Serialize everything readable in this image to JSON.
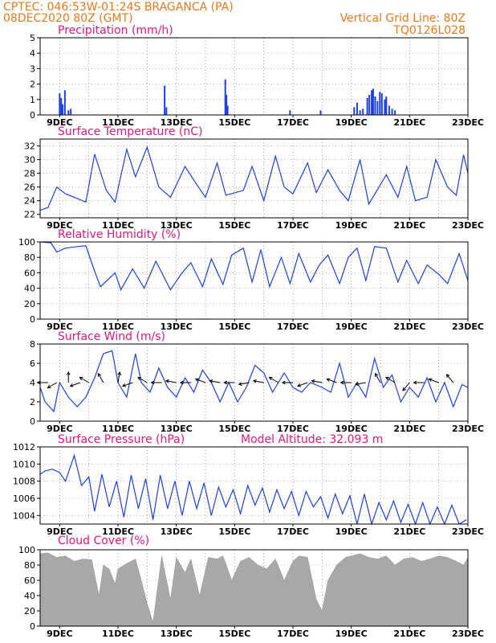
{
  "header": {
    "line1_left": "CPTEC:   046:53W-01:24S   BRAGANCA (PA)",
    "line2_left": "08DEC2020 80Z (GMT)",
    "line1_right": "Vertical Grid Line: 80Z",
    "line2_right": "TQ0126L028"
  },
  "colors": {
    "line": "#1f3fe6",
    "bar": "#1f3fe6",
    "cloud": "#a8a8a8",
    "header": "#e8791c",
    "title": "#e0187a"
  },
  "chart_data": [
    {
      "type": "bar",
      "title": "Precipitation (mm/h)",
      "x_ticks": [
        "9DEC",
        "11DEC",
        "13DEC",
        "15DEC",
        "17DEC",
        "19DEC",
        "21DEC",
        "23DEC"
      ],
      "x_range": [
        8.33,
        23
      ],
      "ylim": [
        0,
        5
      ],
      "y_ticks": [
        0,
        1,
        2,
        3,
        4,
        5
      ],
      "x": [
        9.0,
        9.05,
        9.1,
        9.18,
        9.3,
        9.38,
        12.6,
        12.66,
        14.68,
        14.72,
        14.76,
        16.9,
        17.95,
        19.1,
        19.2,
        19.3,
        19.4,
        19.55,
        19.62,
        19.7,
        19.75,
        19.82,
        19.9,
        19.98,
        20.05,
        20.15,
        20.2,
        20.3,
        20.4,
        20.5
      ],
      "values": [
        1.4,
        1.1,
        0.7,
        1.6,
        0.3,
        0.4,
        1.9,
        0.5,
        2.3,
        1.3,
        0.6,
        0.3,
        0.3,
        0.5,
        0.8,
        0.3,
        0.4,
        1.1,
        1.3,
        1.6,
        1.7,
        1.2,
        0.9,
        1.5,
        1.4,
        1.0,
        1.2,
        0.6,
        0.4,
        0.3
      ]
    },
    {
      "type": "line",
      "title": "Surface Temperature (nC)",
      "x_ticks": [
        "9DEC",
        "11DEC",
        "13DEC",
        "15DEC",
        "17DEC",
        "19DEC",
        "21DEC",
        "23DEC"
      ],
      "x_range": [
        8.33,
        23
      ],
      "ylim": [
        21.5,
        33
      ],
      "y_ticks": [
        22,
        24,
        26,
        28,
        30,
        32
      ],
      "x": [
        8.33,
        8.6,
        8.9,
        9.2,
        9.5,
        9.9,
        10.2,
        10.6,
        10.9,
        11.3,
        11.6,
        12.0,
        12.4,
        12.8,
        13.3,
        13.6,
        14.0,
        14.4,
        14.7,
        15.3,
        15.6,
        16.0,
        16.4,
        16.7,
        17.0,
        17.5,
        17.8,
        18.2,
        18.6,
        18.9,
        19.3,
        19.6,
        20.2,
        20.6,
        20.9,
        21.2,
        21.6,
        21.9,
        22.3,
        22.6,
        22.85,
        23.0
      ],
      "values": [
        22.6,
        23.0,
        26.0,
        25.0,
        24.5,
        23.8,
        30.8,
        25.5,
        23.8,
        31.5,
        27.5,
        31.8,
        26.0,
        24.5,
        29.0,
        27.0,
        24.5,
        29.5,
        24.8,
        25.5,
        29.0,
        24.0,
        30.5,
        26.0,
        25.0,
        29.5,
        25.2,
        28.5,
        25.5,
        24.0,
        30.0,
        23.5,
        27.8,
        24.5,
        29.0,
        24.0,
        24.5,
        30.0,
        26.0,
        24.8,
        30.7,
        28.0
      ]
    },
    {
      "type": "line",
      "title": "Relative Humidity (%)",
      "x_ticks": [
        "9DEC",
        "11DEC",
        "13DEC",
        "15DEC",
        "17DEC",
        "19DEC",
        "21DEC",
        "23DEC"
      ],
      "x_range": [
        8.33,
        23
      ],
      "ylim": [
        0,
        100
      ],
      "y_ticks": [
        0,
        20,
        40,
        60,
        80,
        100
      ],
      "x": [
        8.33,
        8.7,
        8.9,
        9.2,
        9.6,
        9.9,
        10.2,
        10.4,
        10.9,
        11.1,
        11.5,
        11.9,
        12.3,
        12.8,
        13.2,
        13.5,
        13.9,
        14.2,
        14.6,
        14.9,
        15.3,
        15.6,
        15.9,
        16.2,
        16.6,
        16.9,
        17.2,
        17.6,
        17.9,
        18.2,
        18.6,
        18.9,
        19.2,
        19.5,
        19.8,
        20.2,
        20.6,
        20.9,
        21.3,
        21.6,
        22.0,
        22.3,
        22.7,
        23.0
      ],
      "values": [
        100,
        99,
        87,
        92,
        94,
        95,
        62,
        42,
        60,
        38,
        65,
        40,
        75,
        38,
        60,
        73,
        42,
        78,
        45,
        83,
        92,
        48,
        90,
        42,
        80,
        46,
        85,
        48,
        70,
        83,
        46,
        80,
        92,
        50,
        94,
        92,
        48,
        76,
        46,
        70,
        58,
        46,
        85,
        50
      ]
    },
    {
      "type": "line",
      "title": "Surface Wind (m/s)",
      "x_ticks": [
        "9DEC",
        "11DEC",
        "13DEC",
        "15DEC",
        "17DEC",
        "19DEC",
        "21DEC",
        "23DEC"
      ],
      "x_range": [
        8.33,
        23
      ],
      "ylim": [
        0,
        8
      ],
      "y_ticks": [
        0,
        2,
        4,
        6,
        8
      ],
      "x": [
        8.33,
        8.5,
        8.8,
        9.0,
        9.3,
        9.6,
        9.9,
        10.2,
        10.5,
        10.8,
        11.0,
        11.3,
        11.6,
        11.8,
        12.1,
        12.4,
        12.7,
        13.0,
        13.3,
        13.6,
        13.9,
        14.2,
        14.5,
        14.8,
        15.1,
        15.4,
        15.7,
        16.0,
        16.3,
        16.7,
        17.0,
        17.3,
        17.6,
        18.0,
        18.3,
        18.6,
        18.9,
        19.2,
        19.5,
        19.8,
        20.1,
        20.4,
        20.7,
        21.0,
        21.3,
        21.6,
        21.9,
        22.2,
        22.5,
        22.8,
        23.0
      ],
      "values": [
        3.5,
        2.0,
        1.0,
        4.0,
        2.5,
        1.5,
        2.5,
        4.5,
        7.0,
        7.3,
        4.0,
        2.5,
        7.0,
        4.0,
        3.0,
        5.5,
        3.5,
        2.5,
        4.5,
        3.0,
        5.3,
        4.0,
        2.0,
        4.0,
        2.0,
        3.5,
        5.8,
        5.0,
        3.0,
        5.0,
        3.5,
        3.0,
        4.0,
        3.5,
        3.0,
        6.0,
        2.5,
        4.0,
        2.5,
        6.5,
        3.5,
        4.8,
        2.0,
        3.5,
        2.5,
        4.5,
        2.0,
        4.0,
        1.5,
        3.8,
        3.5
      ],
      "arrows_x": [
        8.6,
        8.9,
        9.3,
        9.7,
        10.0,
        10.5,
        11.0,
        11.5,
        12.0,
        12.5,
        13.0,
        13.5,
        14.0,
        14.5,
        15.0,
        15.5,
        16.0,
        16.5,
        17.0,
        17.5,
        18.0,
        18.5,
        19.0,
        19.5,
        20.0,
        20.5,
        21.0,
        21.5,
        22.0,
        22.5
      ],
      "arrows_dir": [
        180,
        210,
        90,
        200,
        150,
        120,
        80,
        200,
        150,
        180,
        170,
        180,
        160,
        170,
        180,
        190,
        170,
        150,
        180,
        200,
        170,
        160,
        180,
        190,
        120,
        150,
        230,
        180,
        160,
        130
      ]
    },
    {
      "type": "line",
      "title": "Surface Pressure (hPa)",
      "annotation": "Model Altitude: 32.093 m",
      "x_ticks": [
        "9DEC",
        "11DEC",
        "13DEC",
        "15DEC",
        "17DEC",
        "19DEC",
        "21DEC",
        "23DEC"
      ],
      "x_range": [
        8.33,
        23
      ],
      "ylim": [
        1003,
        1012
      ],
      "y_ticks": [
        1004,
        1006,
        1008,
        1010,
        1012
      ],
      "x": [
        8.33,
        8.5,
        8.75,
        9.0,
        9.2,
        9.5,
        9.75,
        10.0,
        10.2,
        10.45,
        10.7,
        10.95,
        11.2,
        11.45,
        11.7,
        11.95,
        12.2,
        12.45,
        12.7,
        12.95,
        13.2,
        13.45,
        13.7,
        13.95,
        14.2,
        14.45,
        14.7,
        14.95,
        15.2,
        15.45,
        15.7,
        15.95,
        16.2,
        16.45,
        16.7,
        16.95,
        17.2,
        17.45,
        17.7,
        17.95,
        18.2,
        18.45,
        18.7,
        18.95,
        19.2,
        19.45,
        19.7,
        19.95,
        20.2,
        20.45,
        20.7,
        20.95,
        21.2,
        21.45,
        21.7,
        21.95,
        22.2,
        22.45,
        22.7,
        22.95
      ],
      "values": [
        1008.8,
        1009.2,
        1009.4,
        1009.0,
        1008.0,
        1011.0,
        1007.5,
        1008.5,
        1004.5,
        1008.8,
        1005.0,
        1008.0,
        1003.8,
        1008.7,
        1004.8,
        1008.3,
        1003.5,
        1008.7,
        1004.8,
        1008.0,
        1004.0,
        1008.0,
        1004.8,
        1007.8,
        1004.0,
        1007.3,
        1005.0,
        1007.0,
        1004.2,
        1007.5,
        1005.2,
        1007.2,
        1004.4,
        1007.0,
        1004.8,
        1006.8,
        1004.0,
        1006.8,
        1005.0,
        1006.2,
        1003.7,
        1006.5,
        1004.2,
        1006.3,
        1003.0,
        1006.5,
        1003.0,
        1005.5,
        1003.5,
        1005.7,
        1003.2,
        1005.3,
        1003.0,
        1005.5,
        1003.0,
        1005.0,
        1003.0,
        1005.2,
        1003.0,
        1003.5
      ]
    },
    {
      "type": "area",
      "title": "Cloud Cover (%)",
      "x_ticks": [
        "9DEC",
        "11DEC",
        "13DEC",
        "15DEC",
        "17DEC",
        "19DEC",
        "21DEC",
        "23DEC"
      ],
      "x_range": [
        8.33,
        23
      ],
      "ylim": [
        0,
        100
      ],
      "y_ticks": [
        0,
        20,
        40,
        60,
        80,
        100
      ],
      "x": [
        8.33,
        8.6,
        8.9,
        9.2,
        9.5,
        9.8,
        10.1,
        10.35,
        10.5,
        10.7,
        10.9,
        11.0,
        11.3,
        11.6,
        11.8,
        12.0,
        12.2,
        12.5,
        12.8,
        13.0,
        13.3,
        13.5,
        13.8,
        14.1,
        14.4,
        14.6,
        14.9,
        15.2,
        15.5,
        15.8,
        16.1,
        16.4,
        16.7,
        17.0,
        17.2,
        17.5,
        17.8,
        18.0,
        18.2,
        18.5,
        18.8,
        19.0,
        19.3,
        19.6,
        19.9,
        20.2,
        20.5,
        20.8,
        21.1,
        21.4,
        21.7,
        22.0,
        22.3,
        22.6,
        22.85,
        23.0
      ],
      "values": [
        95,
        96,
        90,
        92,
        85,
        88,
        87,
        40,
        80,
        75,
        55,
        75,
        82,
        88,
        60,
        30,
        5,
        92,
        35,
        90,
        70,
        88,
        40,
        90,
        88,
        92,
        60,
        85,
        90,
        80,
        75,
        88,
        60,
        85,
        92,
        90,
        35,
        20,
        60,
        80,
        90,
        92,
        95,
        90,
        88,
        92,
        80,
        88,
        90,
        85,
        88,
        92,
        90,
        85,
        80,
        90
      ]
    }
  ]
}
